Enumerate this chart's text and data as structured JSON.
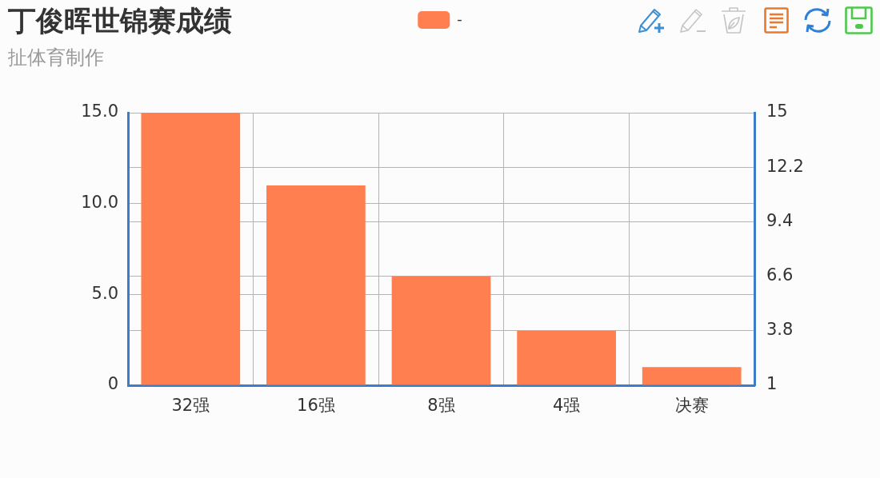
{
  "chart_data": {
    "type": "bar",
    "title": "丁俊晖世锦赛成绩",
    "subtitle": "扯体育制作",
    "categories": [
      "32强",
      "16强",
      "8强",
      "4强",
      "决赛"
    ],
    "series": [
      {
        "name": "-",
        "color": "#ff7f50",
        "values": [
          15,
          11,
          6,
          3,
          1
        ]
      }
    ],
    "ylim": [
      0,
      15
    ],
    "yticks": [
      0,
      {
        "value": 5,
        "label": "5.0"
      },
      {
        "value": 10,
        "label": "10.0"
      },
      {
        "value": 15,
        "label": "15.0"
      }
    ],
    "y2lim": [
      1,
      15
    ],
    "y2ticks": [
      1,
      3.8,
      6.6,
      9.4,
      12.2,
      15
    ],
    "grid": true,
    "legend": "top"
  }
}
